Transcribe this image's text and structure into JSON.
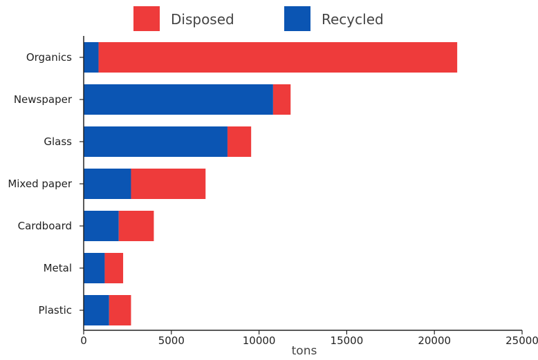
{
  "chart_data": {
    "type": "bar",
    "orientation": "horizontal",
    "stacked": true,
    "categories": [
      "Organics",
      "Newspaper",
      "Glass",
      "Mixed paper",
      "Cardboard",
      "Metal",
      "Plastic"
    ],
    "series": [
      {
        "name": "Recycled",
        "color": "#0b55b3",
        "values": [
          850,
          10800,
          8200,
          2700,
          2000,
          1200,
          1450
        ]
      },
      {
        "name": "Disposed",
        "color": "#ee3b3b",
        "values": [
          20450,
          1000,
          1350,
          4250,
          2000,
          1050,
          1250
        ]
      }
    ],
    "legend_order": [
      "Disposed",
      "Recycled"
    ],
    "legend_position": "top",
    "xlabel": "tons",
    "ylabel": "",
    "xlim": [
      0,
      25000
    ],
    "xticks": [
      "0",
      "5000",
      "10000",
      "15000",
      "20000",
      "25000"
    ],
    "grid": false
  }
}
